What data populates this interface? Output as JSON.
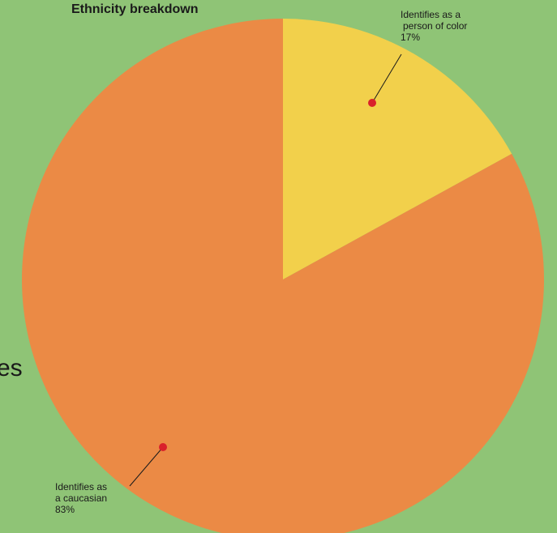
{
  "page": {
    "background_color": "#8fc476",
    "edge_text": "es"
  },
  "chart_data": {
    "type": "pie",
    "title": "Ethnicity breakdown",
    "slices": [
      {
        "name_lines": [
          "Identifies as a",
          "person of color"
        ],
        "value_label": "17%",
        "value": 17,
        "color": "#f2d04b"
      },
      {
        "name_lines": [
          "Identifies as",
          "a caucasian"
        ],
        "value_label": "83%",
        "value": 83,
        "color": "#eb8a45"
      }
    ],
    "marker_color": "#d9212b",
    "legend": "none",
    "grid": false
  }
}
